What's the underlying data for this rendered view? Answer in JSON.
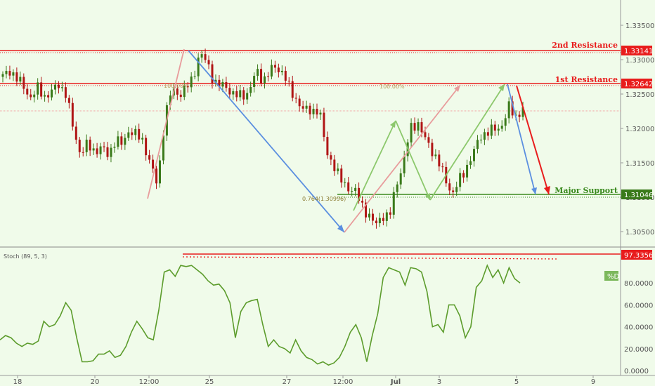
{
  "colors": {
    "background": "#f0fbea",
    "resistance": "#e81c1c",
    "support": "#3a8a1e",
    "candle_up": "#3a7a1a",
    "candle_down": "#b01515",
    "stoch": "#5c9c2c",
    "blue_arrow": "#5b8fe0",
    "pink_arrow": "#e89c9c",
    "green_arrow": "#8cc86c"
  },
  "levels": {
    "resistance2": {
      "label": "2nd Resistance",
      "value": "1.33141"
    },
    "resistance1": {
      "label": "1st Resistance",
      "value": "1.32642"
    },
    "support": {
      "label": "Major Support",
      "value": "1.31046"
    },
    "stoch_high": {
      "value": "97.3356"
    }
  },
  "fib_labels": {
    "fib_100_left": "100.00%",
    "fib_100_right": "100.00%",
    "fib_0764": "0.764(1.30996)"
  },
  "indicator": {
    "name": "Stoch (89, 5, 3)",
    "legend": "%D"
  },
  "chart_data": [
    {
      "type": "line",
      "subtype": "candlestick",
      "xlabel": "",
      "ylabel": "",
      "ylim": [
        1.3045,
        1.338
      ],
      "x_tick_labels": [
        "18",
        "20",
        "12:00",
        "25",
        "27",
        "12:00",
        "Jul",
        "3",
        "5",
        "9"
      ],
      "y_tick_labels": [
        "1.33500",
        "1.33000",
        "1.32500",
        "1.32000",
        "1.31500",
        "1.31000",
        "1.30500"
      ],
      "horizontal_lines": [
        1.33141,
        1.32642,
        1.31046
      ],
      "price_path": [
        1.3275,
        1.3285,
        1.3272,
        1.326,
        1.3245,
        1.3258,
        1.3247,
        1.3253,
        1.3265,
        1.325,
        1.32,
        1.3165,
        1.3175,
        1.3168,
        1.3172,
        1.316,
        1.3185,
        1.3175,
        1.32,
        1.319,
        1.318,
        1.315,
        1.3115,
        1.3215,
        1.3255,
        1.325,
        1.3258,
        1.327,
        1.3312,
        1.3295,
        1.327,
        1.3262,
        1.3258,
        1.325,
        1.3245,
        1.3255,
        1.3282,
        1.327,
        1.3285,
        1.3287,
        1.3282,
        1.325,
        1.324,
        1.3225,
        1.3225,
        1.323,
        1.3165,
        1.315,
        1.3125,
        1.3115,
        1.311,
        1.309,
        1.3075,
        1.3058,
        1.3075,
        1.307,
        1.312,
        1.315,
        1.32,
        1.321,
        1.3185,
        1.317,
        1.315,
        1.3125,
        1.3105,
        1.3125,
        1.3145,
        1.3165,
        1.319,
        1.3195,
        1.3198,
        1.3205,
        1.323,
        1.3218,
        1.3228
      ],
      "candles_drawn": 150
    },
    {
      "type": "line",
      "title": "Stoch (89, 5, 3)",
      "series": [
        {
          "name": "%D",
          "values": [
            28,
            32,
            30,
            25,
            22,
            25,
            24,
            27,
            45,
            40,
            42,
            50,
            62,
            55,
            30,
            8,
            8,
            9,
            15,
            15,
            18,
            12,
            14,
            22,
            35,
            45,
            38,
            30,
            28,
            55,
            90,
            92,
            86,
            96,
            95,
            96,
            92,
            88,
            82,
            78,
            79,
            73,
            62,
            30,
            54,
            62,
            64,
            65,
            42,
            22,
            28,
            22,
            20,
            16,
            28,
            18,
            12,
            10,
            6,
            8,
            5,
            7,
            12,
            22,
            35,
            42,
            30,
            8,
            32,
            52,
            85,
            94,
            92,
            90,
            78,
            94,
            93,
            90,
            72,
            40,
            42,
            35,
            60,
            60,
            50,
            30,
            40,
            76,
            82,
            96,
            85,
            92,
            80,
            94,
            84,
            80
          ]
        }
      ],
      "ylim": [
        0,
        100
      ],
      "y_tick_labels": [
        "0.0000",
        "20.0000",
        "40.0000",
        "60.0000",
        "80.0000"
      ]
    }
  ]
}
